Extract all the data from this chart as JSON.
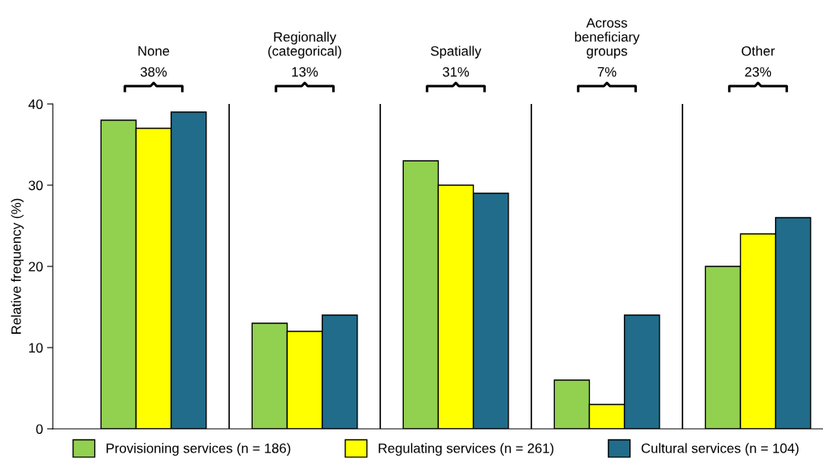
{
  "chart_data": {
    "type": "bar",
    "categories": [
      "None",
      "Regionally\n(categorical)",
      "Spatially",
      "Across\nbeneficiary\ngroups",
      "Other"
    ],
    "ylabel": "Relative frequency (%)",
    "series": [
      {
        "name": "Provisioning services (n = 186)",
        "color": "#92d050",
        "values": [
          38,
          13,
          33,
          6,
          20
        ]
      },
      {
        "name": "Regulating services (n = 261)",
        "color": "#ffff00",
        "values": [
          37,
          12,
          30,
          3,
          24
        ]
      },
      {
        "name": "Cultural services (n = 104)",
        "color": "#206c8a",
        "values": [
          39,
          14,
          29,
          14,
          26
        ]
      }
    ],
    "annotations": [
      "38%",
      "13%",
      "31%",
      "7%",
      "23%"
    ],
    "ylim": [
      0,
      40
    ],
    "yticks": [
      0,
      10,
      20,
      30,
      40
    ],
    "grid": false,
    "legend": "bottom"
  }
}
